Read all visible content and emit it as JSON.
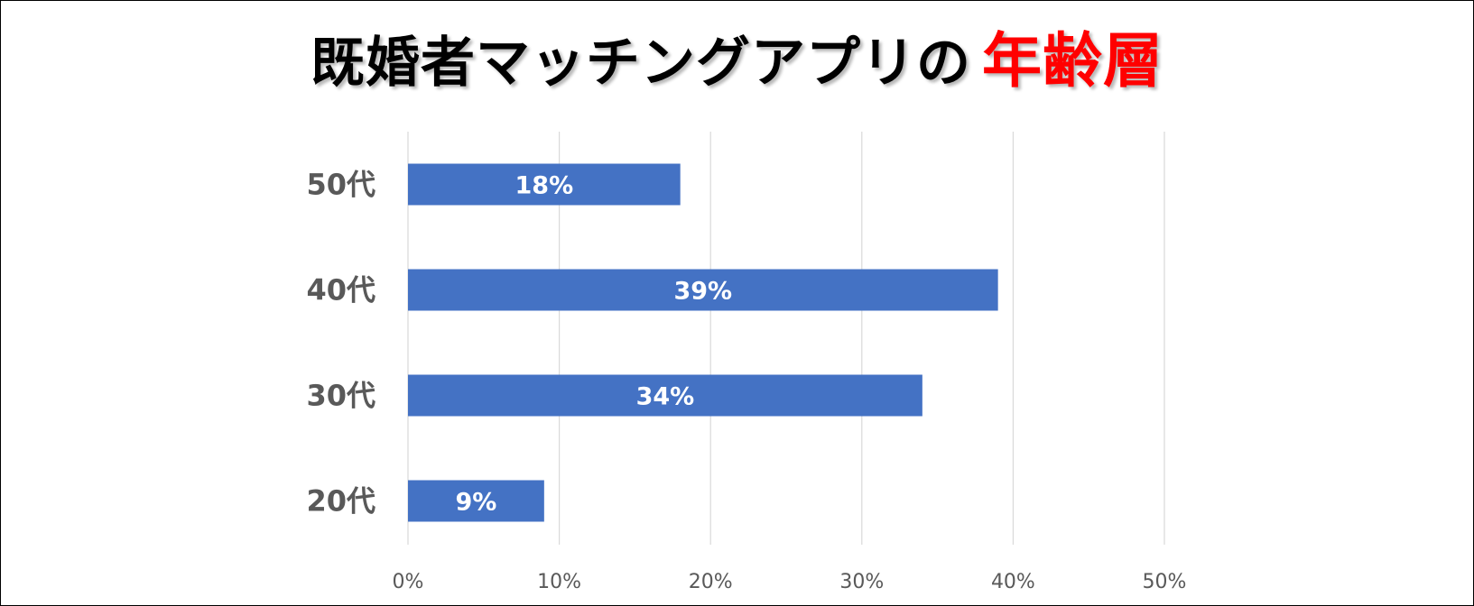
{
  "title": {
    "main": "既婚者マッチングアプリの",
    "accent": "年齢層",
    "main_color": "#000000",
    "accent_color": "#ff0000"
  },
  "chart_data": {
    "type": "bar",
    "orientation": "horizontal",
    "categories": [
      "50代",
      "40代",
      "30代",
      "20代"
    ],
    "values": [
      18,
      39,
      34,
      9
    ],
    "data_labels": [
      "18%",
      "39%",
      "34%",
      "9%"
    ],
    "xlim": [
      0,
      50
    ],
    "x_ticks": [
      0,
      10,
      20,
      30,
      40,
      50
    ],
    "x_tick_labels": [
      "0%",
      "10%",
      "20%",
      "30%",
      "40%",
      "50%"
    ],
    "grid": true,
    "legend": "none",
    "bar_color": "#4472c4",
    "title": "既婚者マッチングアプリの年齢層",
    "xlabel": "",
    "ylabel": ""
  }
}
